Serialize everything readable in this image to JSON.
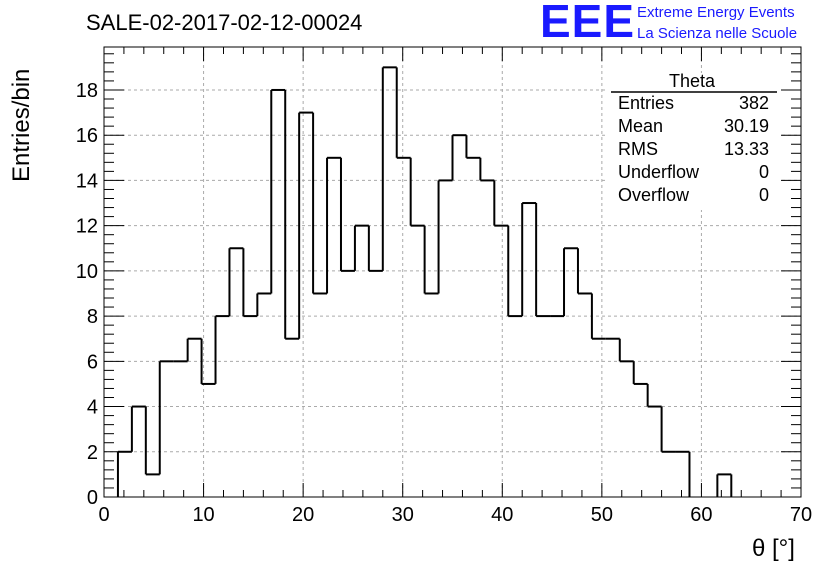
{
  "header": {
    "run_title": "SALE-02-2017-02-12-00024",
    "logo_text": "EEE",
    "logo_line1": "Extreme Energy Events",
    "logo_line2": "La Scienza nelle Scuole",
    "logo_color": "#1a1aff"
  },
  "stats_box": {
    "title": "Theta",
    "rows": [
      {
        "label": "Entries",
        "value": "382"
      },
      {
        "label": "Mean",
        "value": "30.19"
      },
      {
        "label": "RMS",
        "value": "13.33"
      },
      {
        "label": "Underflow",
        "value": "0"
      },
      {
        "label": "Overflow",
        "value": "0"
      }
    ]
  },
  "chart_data": {
    "type": "bar",
    "histogram": true,
    "title": "SALE-02-2017-02-12-00024",
    "xlabel": "θ [°]",
    "ylabel": "Entries/bin",
    "xlim": [
      0,
      70
    ],
    "ylim": [
      0,
      19.9
    ],
    "x_ticks": [
      0,
      10,
      20,
      30,
      40,
      50,
      60,
      70
    ],
    "y_ticks": [
      0,
      2,
      4,
      6,
      8,
      10,
      12,
      14,
      16,
      18
    ],
    "grid": true,
    "bin_width": 1.4,
    "bin_start": 0,
    "values": [
      0,
      2,
      4,
      1,
      6,
      6,
      7,
      5,
      8,
      11,
      8,
      9,
      18,
      7,
      17,
      9,
      15,
      10,
      12,
      10,
      19,
      15,
      12,
      9,
      14,
      16,
      15,
      14,
      12,
      8,
      13,
      8,
      8,
      11,
      9,
      7,
      7,
      6,
      5,
      4,
      2,
      2,
      0,
      0,
      1,
      0,
      0,
      0,
      0,
      0
    ],
    "line_color": "#000000"
  }
}
